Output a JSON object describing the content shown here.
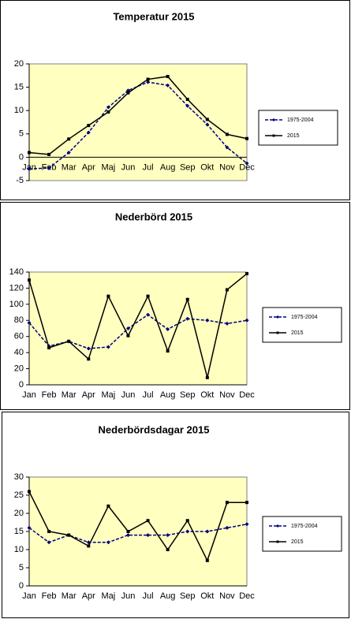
{
  "chart_data": [
    {
      "type": "line",
      "title": "Temperatur 2015",
      "categories": [
        "Jan",
        "Feb",
        "Mar",
        "Apr",
        "Maj",
        "Jun",
        "Jul",
        "Aug",
        "Sep",
        "Okt",
        "Nov",
        "Dec"
      ],
      "series": [
        {
          "name": "1975-2004",
          "color": "#000080",
          "dashed": true,
          "values": [
            -2.5,
            -2.3,
            1,
            5.3,
            10.7,
            14.3,
            16.1,
            15.4,
            11,
            7,
            2.1,
            -1.3
          ]
        },
        {
          "name": "2015",
          "color": "#000000",
          "dashed": false,
          "values": [
            1,
            0.6,
            3.9,
            6.8,
            9.7,
            13.8,
            16.7,
            17.3,
            12.4,
            8.1,
            4.9,
            4
          ]
        }
      ],
      "ylim": [
        -5,
        20
      ],
      "yticks": [
        -5,
        0,
        5,
        10,
        15,
        20
      ],
      "legend": "right"
    },
    {
      "type": "line",
      "title": "Nederbörd 2015",
      "categories": [
        "Jan",
        "Feb",
        "Mar",
        "Apr",
        "Maj",
        "Jun",
        "Jul",
        "Aug",
        "Sep",
        "Okt",
        "Nov",
        "Dec"
      ],
      "series": [
        {
          "name": "1975-2004",
          "color": "#000080",
          "dashed": true,
          "values": [
            77,
            48,
            54,
            45,
            47,
            70,
            87,
            69,
            82,
            80,
            76,
            80
          ]
        },
        {
          "name": "2015",
          "color": "#000000",
          "dashed": false,
          "values": [
            130,
            46,
            54,
            32,
            110,
            61,
            110,
            42,
            106,
            9,
            118,
            138
          ]
        }
      ],
      "ylim": [
        0,
        140
      ],
      "yticks": [
        0,
        20,
        40,
        60,
        80,
        100,
        120,
        140
      ],
      "legend": "right"
    },
    {
      "type": "line",
      "title": "Nederbördsdagar 2015",
      "categories": [
        "Jan",
        "Feb",
        "Mar",
        "Apr",
        "Maj",
        "Jun",
        "Jul",
        "Aug",
        "Sep",
        "Okt",
        "Nov",
        "Dec"
      ],
      "series": [
        {
          "name": "1975-2004",
          "color": "#000080",
          "dashed": true,
          "values": [
            16,
            12,
            14,
            12,
            12,
            14,
            14,
            14,
            15,
            15,
            16,
            17
          ]
        },
        {
          "name": "2015",
          "color": "#000000",
          "dashed": false,
          "values": [
            26,
            15,
            14,
            11,
            22,
            15,
            18,
            10,
            18,
            7,
            23,
            23
          ]
        }
      ],
      "ylim": [
        0,
        30
      ],
      "yticks": [
        0,
        5,
        10,
        15,
        20,
        25,
        30
      ],
      "legend": "right"
    }
  ]
}
